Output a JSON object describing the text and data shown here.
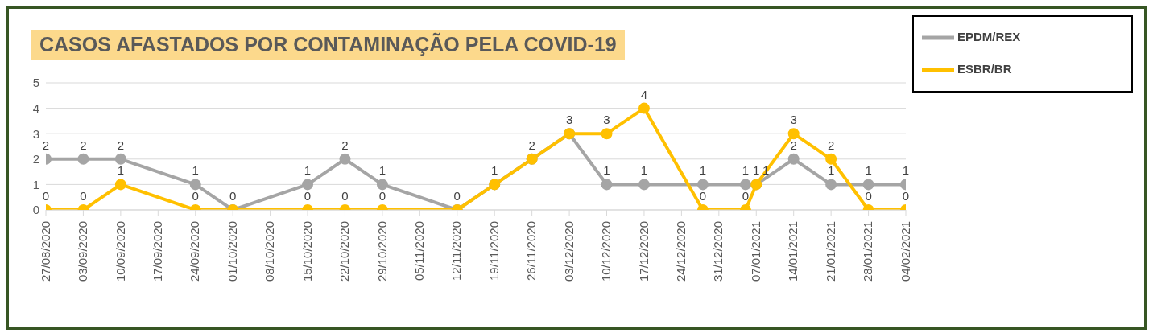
{
  "chart_data": {
    "type": "line",
    "title": "CASOS AFASTADOS POR CONTAMINAÇÃO  PELA COVID-19",
    "x": [
      "2020-08-27",
      "2020-09-03",
      "2020-09-10",
      "2020-09-24",
      "2020-10-01",
      "2020-10-15",
      "2020-10-22",
      "2020-10-29",
      "2020-11-12",
      "2020-11-19",
      "2020-11-26",
      "2020-12-03",
      "2020-12-10",
      "2020-12-17",
      "2020-12-28",
      "2021-01-05",
      "2021-01-07",
      "2021-01-14",
      "2021-01-21",
      "2021-01-28",
      "2021-02-04"
    ],
    "series": [
      {
        "name": "EPDM/REX",
        "color": "#a5a5a5",
        "values": [
          2,
          2,
          2,
          1,
          0,
          1,
          2,
          1,
          0,
          1,
          2,
          3,
          1,
          1,
          1,
          1,
          1,
          2,
          1,
          1,
          1
        ]
      },
      {
        "name": "ESBR/BR",
        "color": "#ffc000",
        "values": [
          0,
          0,
          1,
          0,
          0,
          0,
          0,
          0,
          0,
          1,
          2,
          3,
          3,
          4,
          0,
          0,
          1,
          3,
          2,
          0,
          0
        ],
        "value_labels": [
          "0",
          "0",
          "1",
          "0",
          null,
          "0",
          "0",
          "0",
          null,
          null,
          null,
          null,
          "3",
          "4",
          "0",
          "0",
          "1",
          "3",
          "2",
          "0",
          "0"
        ]
      }
    ],
    "xlim": [
      "2020-08-27",
      "2021-02-04"
    ],
    "xticks": [
      {
        "value": "2020-08-27",
        "label": "27/08/2020"
      },
      {
        "value": "2020-09-03",
        "label": "03/09/2020"
      },
      {
        "value": "2020-09-10",
        "label": "10/09/2020"
      },
      {
        "value": "2020-09-17",
        "label": "17/09/2020"
      },
      {
        "value": "2020-09-24",
        "label": "24/09/2020"
      },
      {
        "value": "2020-10-01",
        "label": "01/10/2020"
      },
      {
        "value": "2020-10-08",
        "label": "08/10/2020"
      },
      {
        "value": "2020-10-15",
        "label": "15/10/2020"
      },
      {
        "value": "2020-10-22",
        "label": "22/10/2020"
      },
      {
        "value": "2020-10-29",
        "label": "29/10/2020"
      },
      {
        "value": "2020-11-05",
        "label": "05/11/2020"
      },
      {
        "value": "2020-11-12",
        "label": "12/11/2020"
      },
      {
        "value": "2020-11-19",
        "label": "19/11/2020"
      },
      {
        "value": "2020-11-26",
        "label": "26/11/2020"
      },
      {
        "value": "2020-12-03",
        "label": "03/12/2020"
      },
      {
        "value": "2020-12-10",
        "label": "10/12/2020"
      },
      {
        "value": "2020-12-17",
        "label": "17/12/2020"
      },
      {
        "value": "2020-12-24",
        "label": "24/12/2020"
      },
      {
        "value": "2020-12-31",
        "label": "31/12/2020"
      },
      {
        "value": "2021-01-07",
        "label": "07/01/2021"
      },
      {
        "value": "2021-01-14",
        "label": "14/01/2021"
      },
      {
        "value": "2021-01-21",
        "label": "21/01/2021"
      },
      {
        "value": "2021-01-28",
        "label": "28/01/2021"
      },
      {
        "value": "2021-02-04",
        "label": "04/02/2021"
      }
    ],
    "ylim": [
      0,
      5
    ],
    "yticks": [
      0,
      1,
      2,
      3,
      4,
      5
    ],
    "grid": "y",
    "legend": "top right",
    "marker": "circle",
    "line_style": "solid",
    "data_labels": true
  }
}
